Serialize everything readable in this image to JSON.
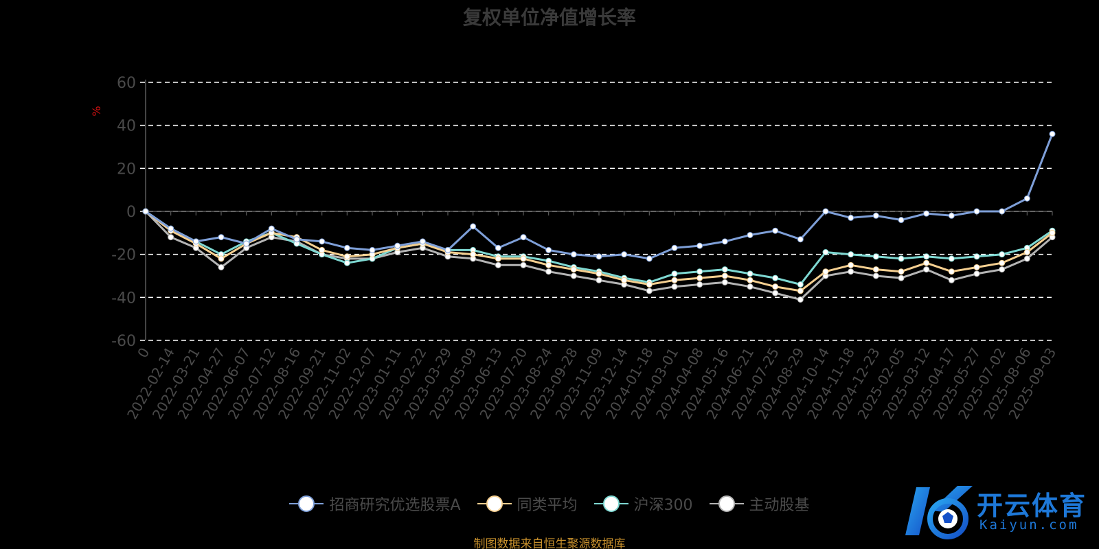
{
  "chart_data": {
    "type": "line",
    "title": "复权单位净值增长率",
    "ylabel": "%",
    "ylim": [
      -60,
      60
    ],
    "yticks": [
      60,
      40,
      20,
      0,
      -20,
      -40,
      -60
    ],
    "grid": true,
    "legend_position": "bottom",
    "x": [
      "0",
      "2022-02-14",
      "2022-03-21",
      "2022-04-27",
      "2022-06-07",
      "2022-07-12",
      "2022-08-16",
      "2022-09-21",
      "2022-11-02",
      "2022-12-07",
      "2023-01-11",
      "2023-02-22",
      "2023-03-29",
      "2023-05-09",
      "2023-06-13",
      "2023-07-20",
      "2023-08-24",
      "2023-09-28",
      "2023-11-09",
      "2023-12-14",
      "2024-01-18",
      "2024-03-01",
      "2024-04-08",
      "2024-05-16",
      "2024-06-21",
      "2024-07-25",
      "2024-08-29",
      "2024-10-14",
      "2024-11-18",
      "2024-12-23",
      "2025-02-05",
      "2025-03-12",
      "2025-04-17",
      "2025-05-27",
      "2025-07-02",
      "2025-08-06",
      "2025-09-03"
    ],
    "series": [
      {
        "name": "招商研究优选股票A",
        "color": "#7e9fd8",
        "values": [
          0,
          -8,
          -14,
          -12,
          -15,
          -8,
          -13,
          -14,
          -17,
          -18,
          -16,
          -14,
          -18,
          -7,
          -17,
          -12,
          -18,
          -20,
          -21,
          -20,
          -22,
          -17,
          -16,
          -14,
          -11,
          -9,
          -13,
          0,
          -3,
          -2,
          -4,
          -1,
          -2,
          0,
          0,
          6,
          36
        ]
      },
      {
        "name": "同类平均",
        "color": "#f5cf90",
        "values": [
          0,
          -9,
          -15,
          -22,
          -15,
          -10,
          -12,
          -18,
          -21,
          -20,
          -17,
          -15,
          -19,
          -20,
          -22,
          -22,
          -25,
          -27,
          -29,
          -32,
          -34,
          -32,
          -31,
          -30,
          -32,
          -35,
          -37,
          -28,
          -25,
          -27,
          -28,
          -24,
          -28,
          -26,
          -24,
          -19,
          -10
        ]
      },
      {
        "name": "沪深300",
        "color": "#7ed8d2",
        "values": [
          0,
          -8,
          -14,
          -20,
          -14,
          -10,
          -15,
          -20,
          -24,
          -22,
          -17,
          -15,
          -18,
          -18,
          -21,
          -21,
          -23,
          -26,
          -28,
          -31,
          -33,
          -29,
          -28,
          -27,
          -29,
          -31,
          -34,
          -19,
          -20,
          -21,
          -22,
          -21,
          -22,
          -21,
          -20,
          -17,
          -9
        ]
      },
      {
        "name": "主动股基",
        "color": "#b4b4b4",
        "values": [
          0,
          -12,
          -17,
          -26,
          -17,
          -12,
          -14,
          -20,
          -22,
          -22,
          -19,
          -17,
          -21,
          -22,
          -25,
          -25,
          -28,
          -30,
          -32,
          -34,
          -37,
          -35,
          -34,
          -33,
          -35,
          -38,
          -41,
          -30,
          -28,
          -30,
          -31,
          -27,
          -32,
          -29,
          -27,
          -22,
          -12
        ]
      }
    ]
  },
  "source_note": "制图数据来自恒生聚源数据库",
  "logo": {
    "name": "开云体育",
    "sub": "Kaiyun.com"
  }
}
